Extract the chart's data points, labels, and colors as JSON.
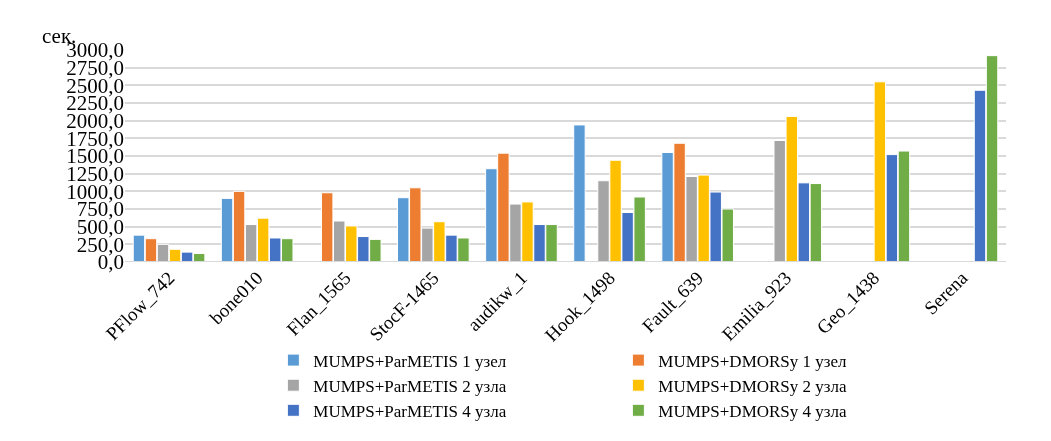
{
  "chart_data": {
    "type": "bar",
    "ylabel": "сек.",
    "categories": [
      "PFlow_742",
      "bone010",
      "Flan_1565",
      "StocF-1465",
      "audikw_1",
      "Hook_1498",
      "Fault_639",
      "Emilia_923",
      "Geo_1438",
      "Serena"
    ],
    "series": [
      {
        "name": "MUMPS+ParMETIS 1 узел",
        "color": "#5b9bd5",
        "values": [
          380,
          900,
          null,
          910,
          1320,
          1940,
          1550,
          null,
          null,
          null
        ]
      },
      {
        "name": "MUMPS+DMORSy 1 узел",
        "color": "#ed7d31",
        "values": [
          330,
          1000,
          980,
          1050,
          1540,
          null,
          1680,
          null,
          null,
          null
        ]
      },
      {
        "name": "MUMPS+ParMETIS 2 узла",
        "color": "#a5a5a5",
        "values": [
          250,
          530,
          580,
          480,
          820,
          1150,
          1210,
          1720,
          null,
          null
        ]
      },
      {
        "name": "MUMPS+DMORSy 2 узла",
        "color": "#ffc000",
        "values": [
          180,
          620,
          510,
          570,
          850,
          1440,
          1230,
          2060,
          2550,
          null
        ]
      },
      {
        "name": "MUMPS+ParMETIS 4 узла",
        "color": "#4472c4",
        "values": [
          140,
          340,
          360,
          380,
          530,
          700,
          990,
          1120,
          1520,
          2430
        ]
      },
      {
        "name": "MUMPS+DMORSy 4 узла",
        "color": "#70ad47",
        "values": [
          120,
          330,
          320,
          340,
          530,
          920,
          750,
          1110,
          1570,
          2920
        ]
      }
    ],
    "ylim": [
      0,
      3000
    ],
    "yticks": [
      {
        "value": 0,
        "label": "0,0"
      },
      {
        "value": 250,
        "label": "250,0"
      },
      {
        "value": 500,
        "label": "500,0"
      },
      {
        "value": 750,
        "label": "750,0"
      },
      {
        "value": 1000,
        "label": "1000,0"
      },
      {
        "value": 1250,
        "label": "1250,0"
      },
      {
        "value": 1500,
        "label": "1500,0"
      },
      {
        "value": 1750,
        "label": "1750,0"
      },
      {
        "value": 2000,
        "label": "2000,0"
      },
      {
        "value": 2250,
        "label": "2250,0"
      },
      {
        "value": 2500,
        "label": "2500,0"
      },
      {
        "value": 2750,
        "label": "2750,0"
      },
      {
        "value": 3000,
        "label": "3000,0"
      }
    ],
    "grid": "y",
    "legend": "bottom"
  }
}
